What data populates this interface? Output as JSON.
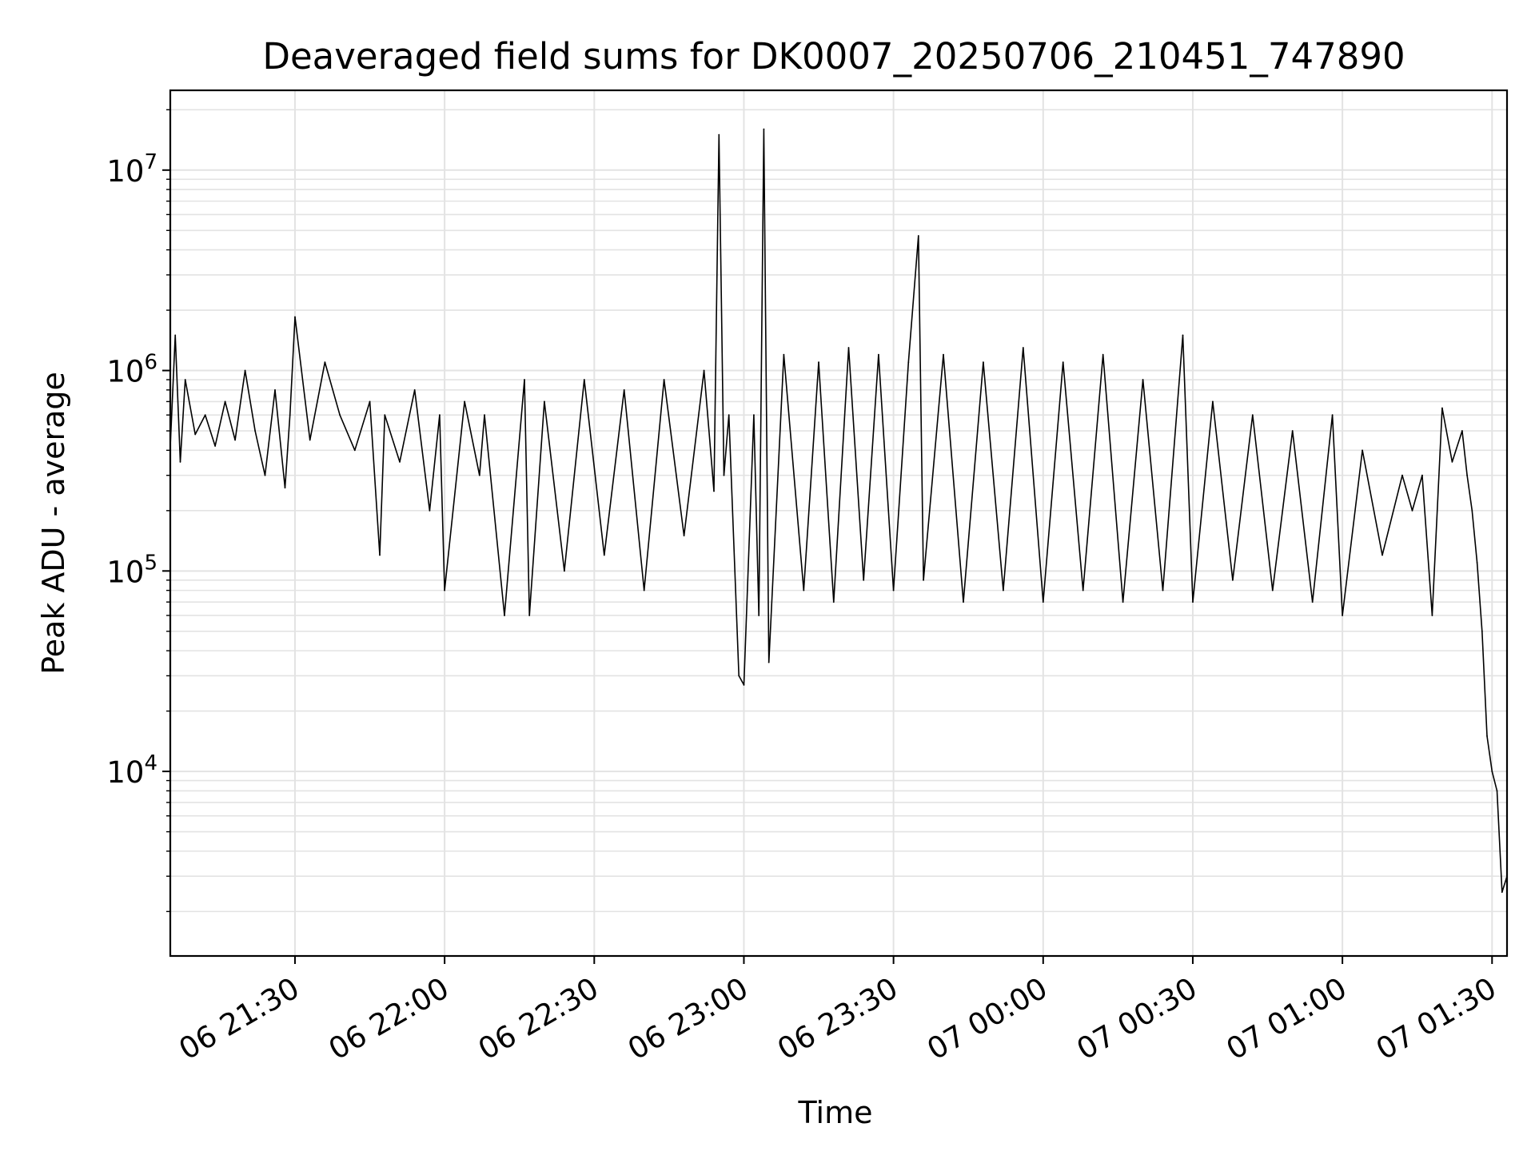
{
  "chart_data": {
    "type": "line",
    "title": "Deaveraged field sums for DK0007_20250706_210451_747890",
    "xlabel": "Time",
    "ylabel": "Peak ADU - average",
    "x_scale": "time",
    "y_scale": "log",
    "xlim": [
      "2025-07-06 21:05",
      "2025-07-07 01:33"
    ],
    "ylim": [
      1200,
      25000000
    ],
    "x_ticks": [
      {
        "time": "2025-07-06 21:30",
        "label": "06 21:30"
      },
      {
        "time": "2025-07-06 22:00",
        "label": "06 22:00"
      },
      {
        "time": "2025-07-06 22:30",
        "label": "06 22:30"
      },
      {
        "time": "2025-07-06 23:00",
        "label": "06 23:00"
      },
      {
        "time": "2025-07-06 23:30",
        "label": "06 23:30"
      },
      {
        "time": "2025-07-07 00:00",
        "label": "07 00:00"
      },
      {
        "time": "2025-07-07 00:30",
        "label": "07 00:30"
      },
      {
        "time": "2025-07-07 01:00",
        "label": "07 01:00"
      },
      {
        "time": "2025-07-07 01:30",
        "label": "07 01:30"
      }
    ],
    "y_ticks": [
      {
        "value": 10000,
        "base": "10",
        "exp": "4"
      },
      {
        "value": 100000,
        "base": "10",
        "exp": "5"
      },
      {
        "value": 1000000,
        "base": "10",
        "exp": "6"
      },
      {
        "value": 10000000,
        "base": "10",
        "exp": "7"
      }
    ],
    "grid": true,
    "line_color": "#000000",
    "series": [
      {
        "x": [
          "2025-07-06 21:05",
          "2025-07-06 21:06",
          "2025-07-06 21:07",
          "2025-07-06 21:08",
          "2025-07-06 21:10",
          "2025-07-06 21:12",
          "2025-07-06 21:14",
          "2025-07-06 21:16",
          "2025-07-06 21:18",
          "2025-07-06 21:20",
          "2025-07-06 21:22",
          "2025-07-06 21:24",
          "2025-07-06 21:26",
          "2025-07-06 21:28",
          "2025-07-06 21:29",
          "2025-07-06 21:30",
          "2025-07-06 21:33",
          "2025-07-06 21:36",
          "2025-07-06 21:39",
          "2025-07-06 21:42",
          "2025-07-06 21:45",
          "2025-07-06 21:47",
          "2025-07-06 21:48",
          "2025-07-06 21:51",
          "2025-07-06 21:54",
          "2025-07-06 21:57",
          "2025-07-06 21:59",
          "2025-07-06 22:00",
          "2025-07-06 22:04",
          "2025-07-06 22:07",
          "2025-07-06 22:08",
          "2025-07-06 22:12",
          "2025-07-06 22:16",
          "2025-07-06 22:17",
          "2025-07-06 22:20",
          "2025-07-06 22:24",
          "2025-07-06 22:28",
          "2025-07-06 22:32",
          "2025-07-06 22:36",
          "2025-07-06 22:40",
          "2025-07-06 22:44",
          "2025-07-06 22:48",
          "2025-07-06 22:52",
          "2025-07-06 22:54",
          "2025-07-06 22:55",
          "2025-07-06 22:56",
          "2025-07-06 22:57",
          "2025-07-06 22:59",
          "2025-07-06 23:00",
          "2025-07-06 23:02",
          "2025-07-06 23:03",
          "2025-07-06 23:04",
          "2025-07-06 23:05",
          "2025-07-06 23:08",
          "2025-07-06 23:12",
          "2025-07-06 23:15",
          "2025-07-06 23:18",
          "2025-07-06 23:21",
          "2025-07-06 23:24",
          "2025-07-06 23:27",
          "2025-07-06 23:30",
          "2025-07-06 23:33",
          "2025-07-06 23:35",
          "2025-07-06 23:36",
          "2025-07-06 23:40",
          "2025-07-06 23:44",
          "2025-07-06 23:48",
          "2025-07-06 23:52",
          "2025-07-06 23:56",
          "2025-07-07 00:00",
          "2025-07-07 00:04",
          "2025-07-07 00:08",
          "2025-07-07 00:12",
          "2025-07-07 00:16",
          "2025-07-07 00:20",
          "2025-07-07 00:24",
          "2025-07-07 00:28",
          "2025-07-07 00:30",
          "2025-07-07 00:34",
          "2025-07-07 00:38",
          "2025-07-07 00:42",
          "2025-07-07 00:46",
          "2025-07-07 00:50",
          "2025-07-07 00:54",
          "2025-07-07 00:58",
          "2025-07-07 01:00",
          "2025-07-07 01:04",
          "2025-07-07 01:08",
          "2025-07-07 01:12",
          "2025-07-07 01:14",
          "2025-07-07 01:16",
          "2025-07-07 01:18",
          "2025-07-07 01:20",
          "2025-07-07 01:22",
          "2025-07-07 01:24",
          "2025-07-07 01:25",
          "2025-07-07 01:26",
          "2025-07-07 01:27",
          "2025-07-07 01:28",
          "2025-07-07 01:29",
          "2025-07-07 01:30",
          "2025-07-07 01:31",
          "2025-07-07 01:32",
          "2025-07-07 01:33"
        ],
        "y": [
          420000,
          1500000,
          350000,
          900000,
          480000,
          600000,
          420000,
          700000,
          450000,
          1000000,
          500000,
          300000,
          800000,
          260000,
          600000,
          1850000,
          450000,
          1100000,
          600000,
          400000,
          700000,
          120000,
          600000,
          350000,
          800000,
          200000,
          600000,
          80000,
          700000,
          300000,
          600000,
          60000,
          900000,
          60000,
          700000,
          100000,
          900000,
          120000,
          800000,
          80000,
          900000,
          150000,
          1000000,
          250000,
          15000000,
          300000,
          600000,
          30000,
          27000,
          600000,
          60000,
          16000000,
          35000,
          1200000,
          80000,
          1100000,
          70000,
          1300000,
          90000,
          1200000,
          80000,
          1100000,
          4700000,
          90000,
          1200000,
          70000,
          1100000,
          80000,
          1300000,
          70000,
          1100000,
          80000,
          1200000,
          70000,
          900000,
          80000,
          1500000,
          70000,
          700000,
          90000,
          600000,
          80000,
          500000,
          70000,
          600000,
          60000,
          400000,
          120000,
          300000,
          200000,
          300000,
          60000,
          650000,
          350000,
          500000,
          300000,
          200000,
          110000,
          50000,
          15000,
          10000,
          8000,
          2500,
          3000
        ]
      }
    ]
  }
}
